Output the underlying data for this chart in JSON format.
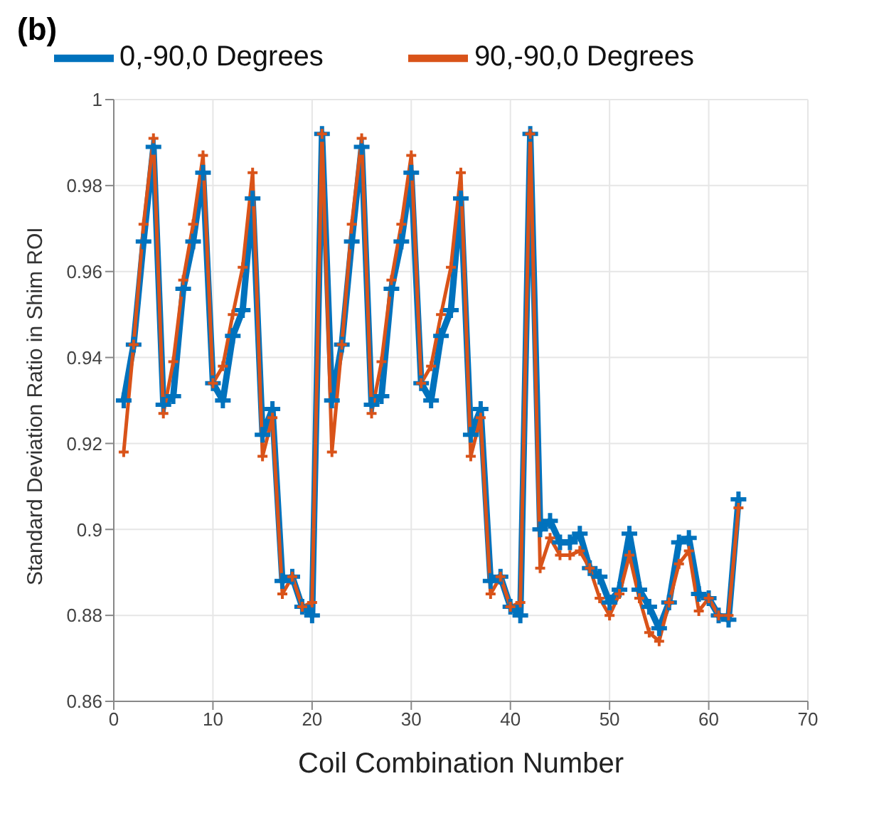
{
  "chart_data": {
    "type": "line",
    "title": "(b)",
    "xlabel": "Coil Combination Number",
    "ylabel": "Standard Deviation Ratio in Shim ROI",
    "x": [
      1,
      2,
      3,
      4,
      5,
      6,
      7,
      8,
      9,
      10,
      11,
      12,
      13,
      14,
      15,
      16,
      17,
      18,
      19,
      20,
      21,
      22,
      23,
      24,
      25,
      26,
      27,
      28,
      29,
      30,
      31,
      32,
      33,
      34,
      35,
      36,
      37,
      38,
      39,
      40,
      41,
      42,
      43,
      44,
      45,
      46,
      47,
      48,
      49,
      50,
      51,
      52,
      53,
      54,
      55,
      56,
      57,
      58,
      59,
      60,
      61,
      62,
      63
    ],
    "series": [
      {
        "name": "0,-90,0 Degrees",
        "color": "#0072bd",
        "values": [
          0.93,
          0.943,
          0.967,
          0.989,
          0.929,
          0.931,
          0.956,
          0.967,
          0.983,
          0.934,
          0.93,
          0.945,
          0.951,
          0.977,
          0.922,
          0.928,
          0.888,
          0.889,
          0.882,
          0.88,
          0.992,
          0.93,
          0.943,
          0.967,
          0.989,
          0.929,
          0.931,
          0.956,
          0.967,
          0.983,
          0.934,
          0.93,
          0.945,
          0.951,
          0.977,
          0.922,
          0.928,
          0.888,
          0.889,
          0.882,
          0.88,
          0.992,
          0.9,
          0.902,
          0.897,
          0.897,
          0.899,
          0.891,
          0.889,
          0.883,
          0.886,
          0.899,
          0.886,
          0.882,
          0.877,
          0.883,
          0.897,
          0.898,
          0.885,
          0.884,
          0.88,
          0.879,
          0.907
        ]
      },
      {
        "name": "90,-90,0 Degrees",
        "color": "#d95319",
        "values": [
          0.918,
          0.943,
          0.971,
          0.991,
          0.927,
          0.939,
          0.958,
          0.971,
          0.987,
          0.934,
          0.938,
          0.95,
          0.961,
          0.983,
          0.917,
          0.926,
          0.885,
          0.889,
          0.882,
          0.883,
          0.992,
          0.918,
          0.943,
          0.971,
          0.991,
          0.927,
          0.939,
          0.958,
          0.971,
          0.987,
          0.934,
          0.938,
          0.95,
          0.961,
          0.983,
          0.917,
          0.926,
          0.885,
          0.889,
          0.882,
          0.883,
          0.992,
          0.891,
          0.898,
          0.894,
          0.894,
          0.895,
          0.891,
          0.884,
          0.88,
          0.885,
          0.894,
          0.884,
          0.876,
          0.874,
          0.883,
          0.892,
          0.895,
          0.881,
          0.884,
          0.88,
          0.88,
          0.905
        ]
      }
    ],
    "xlim": [
      0,
      70
    ],
    "xticks": [
      0,
      10,
      20,
      30,
      40,
      50,
      60,
      70
    ],
    "ylim": [
      0.86,
      1
    ],
    "yticks": [
      0.86,
      0.88,
      0.9,
      0.92,
      0.94,
      0.96,
      0.98,
      1
    ],
    "grid": true,
    "legend": "top",
    "marker": "cross",
    "line_style": "solid"
  }
}
